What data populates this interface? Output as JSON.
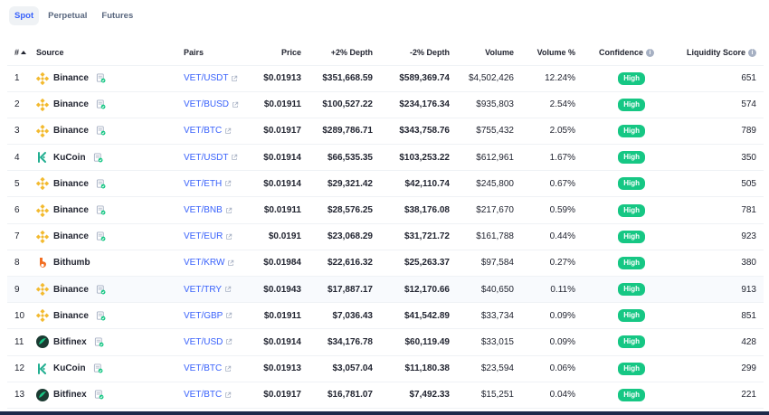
{
  "tabs": [
    {
      "label": "Spot",
      "active": true
    },
    {
      "label": "Perpetual",
      "active": false
    },
    {
      "label": "Futures",
      "active": false
    }
  ],
  "columns": {
    "rank": "#",
    "source": "Source",
    "pairs": "Pairs",
    "price": "Price",
    "plus_depth": "+2% Depth",
    "minus_depth": "-2% Depth",
    "volume": "Volume",
    "volume_pct": "Volume %",
    "confidence": "Confidence",
    "liquidity": "Liquidity Score"
  },
  "colors": {
    "accent": "#3861fb",
    "high_badge": "#16c784",
    "binance": "#f3ba2f",
    "kucoin": "#23af91",
    "bithumb": "#f26d21",
    "bitfinex": "#1b3b32"
  },
  "rows": [
    {
      "rank": "1",
      "source": "Binance",
      "logo": "binance",
      "pair": "VET/USDT",
      "price": "$0.01913",
      "plus_depth": "$351,668.59",
      "minus_depth": "$589,369.74",
      "volume": "$4,502,426",
      "volume_pct": "12.24%",
      "confidence": "High",
      "liquidity": "651",
      "verified": true
    },
    {
      "rank": "2",
      "source": "Binance",
      "logo": "binance",
      "pair": "VET/BUSD",
      "price": "$0.01911",
      "plus_depth": "$100,527.22",
      "minus_depth": "$234,176.34",
      "volume": "$935,803",
      "volume_pct": "2.54%",
      "confidence": "High",
      "liquidity": "574",
      "verified": true
    },
    {
      "rank": "3",
      "source": "Binance",
      "logo": "binance",
      "pair": "VET/BTC",
      "price": "$0.01917",
      "plus_depth": "$289,786.71",
      "minus_depth": "$343,758.76",
      "volume": "$755,432",
      "volume_pct": "2.05%",
      "confidence": "High",
      "liquidity": "789",
      "verified": true
    },
    {
      "rank": "4",
      "source": "KuCoin",
      "logo": "kucoin",
      "pair": "VET/USDT",
      "price": "$0.01914",
      "plus_depth": "$66,535.35",
      "minus_depth": "$103,253.22",
      "volume": "$612,961",
      "volume_pct": "1.67%",
      "confidence": "High",
      "liquidity": "350",
      "verified": true
    },
    {
      "rank": "5",
      "source": "Binance",
      "logo": "binance",
      "pair": "VET/ETH",
      "price": "$0.01914",
      "plus_depth": "$29,321.42",
      "minus_depth": "$42,110.74",
      "volume": "$245,800",
      "volume_pct": "0.67%",
      "confidence": "High",
      "liquidity": "505",
      "verified": true
    },
    {
      "rank": "6",
      "source": "Binance",
      "logo": "binance",
      "pair": "VET/BNB",
      "price": "$0.01911",
      "plus_depth": "$28,576.25",
      "minus_depth": "$38,176.08",
      "volume": "$217,670",
      "volume_pct": "0.59%",
      "confidence": "High",
      "liquidity": "781",
      "verified": true
    },
    {
      "rank": "7",
      "source": "Binance",
      "logo": "binance",
      "pair": "VET/EUR",
      "price": "$0.0191",
      "plus_depth": "$23,068.29",
      "minus_depth": "$31,721.72",
      "volume": "$161,788",
      "volume_pct": "0.44%",
      "confidence": "High",
      "liquidity": "923",
      "verified": true
    },
    {
      "rank": "8",
      "source": "Bithumb",
      "logo": "bithumb",
      "pair": "VET/KRW",
      "price": "$0.01984",
      "plus_depth": "$22,616.32",
      "minus_depth": "$25,263.37",
      "volume": "$97,584",
      "volume_pct": "0.27%",
      "confidence": "High",
      "liquidity": "380",
      "verified": false
    },
    {
      "rank": "9",
      "source": "Binance",
      "logo": "binance",
      "pair": "VET/TRY",
      "price": "$0.01943",
      "plus_depth": "$17,887.17",
      "minus_depth": "$12,170.66",
      "volume": "$40,650",
      "volume_pct": "0.11%",
      "confidence": "High",
      "liquidity": "913",
      "verified": true,
      "highlight": true
    },
    {
      "rank": "10",
      "source": "Binance",
      "logo": "binance",
      "pair": "VET/GBP",
      "price": "$0.01911",
      "plus_depth": "$7,036.43",
      "minus_depth": "$41,542.89",
      "volume": "$33,734",
      "volume_pct": "0.09%",
      "confidence": "High",
      "liquidity": "851",
      "verified": true
    },
    {
      "rank": "11",
      "source": "Bitfinex",
      "logo": "bitfinex",
      "pair": "VET/USD",
      "price": "$0.01914",
      "plus_depth": "$34,176.78",
      "minus_depth": "$60,119.49",
      "volume": "$33,015",
      "volume_pct": "0.09%",
      "confidence": "High",
      "liquidity": "428",
      "verified": true
    },
    {
      "rank": "12",
      "source": "KuCoin",
      "logo": "kucoin",
      "pair": "VET/BTC",
      "price": "$0.01913",
      "plus_depth": "$3,057.04",
      "minus_depth": "$11,180.38",
      "volume": "$23,594",
      "volume_pct": "0.06%",
      "confidence": "High",
      "liquidity": "299",
      "verified": true
    },
    {
      "rank": "13",
      "source": "Bitfinex",
      "logo": "bitfinex",
      "pair": "VET/BTC",
      "price": "$0.01917",
      "plus_depth": "$16,781.07",
      "minus_depth": "$7,492.33",
      "volume": "$15,251",
      "volume_pct": "0.04%",
      "confidence": "High",
      "liquidity": "221",
      "verified": true
    }
  ]
}
